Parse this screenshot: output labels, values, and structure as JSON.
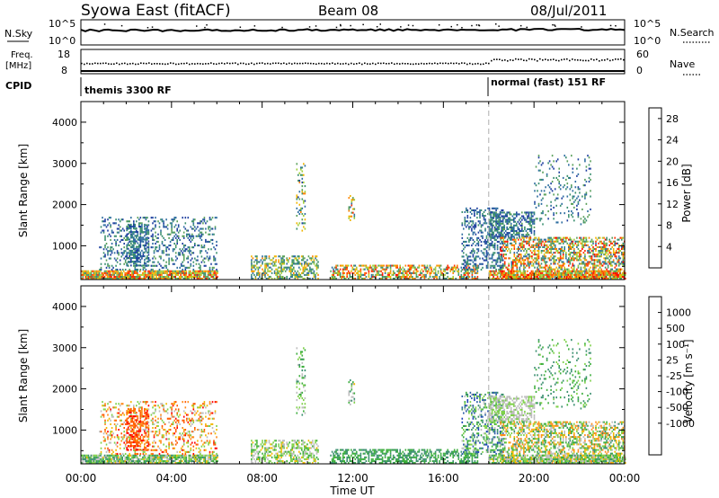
{
  "header": {
    "title": "Syowa East (fitACF)",
    "beam": "Beam 08",
    "date": "08/Jul/2011"
  },
  "top_panels": {
    "nsky_label": "N.Sky",
    "nsky_ticks": [
      "10^5",
      "10^0"
    ],
    "nsearch_label": "N.Search",
    "freq_label_1": "Freq.",
    "freq_label_2": "[MHz]",
    "freq_ticks": [
      "18",
      "8"
    ],
    "nave_label": "Nave",
    "nave_ticks": [
      "60",
      "0"
    ],
    "cpid_label": "CPID",
    "cpid_segments": [
      "themis 3300 RF",
      "normal (fast) 151 RF"
    ]
  },
  "colors": {
    "power": [
      "#0000ff",
      "#1f3f9f",
      "#2e6ea0",
      "#3a8f6f",
      "#5aa05a",
      "#a0cf3a",
      "#f0b400",
      "#ff8000",
      "#ff3000",
      "#ff0000"
    ],
    "velocity": [
      "#ff0000",
      "#ff5a00",
      "#ff8c1a",
      "#f2b800",
      "#bdbdbd",
      "#7fd14a",
      "#3cae3c",
      "#3a8f6f",
      "#2b5fa8",
      "#1a3fb5"
    ]
  },
  "chart_data": [
    {
      "type": "heatmap",
      "name": "power_panel",
      "xlabel": "Time UT",
      "ylabel": "Slant Range [km]",
      "x_ticks": [
        "00:00",
        "04:00",
        "08:00",
        "12:00",
        "16:00",
        "20:00",
        "00:00"
      ],
      "xlim_hours": [
        0,
        24
      ],
      "y_ticks": [
        "1000",
        "2000",
        "3000",
        "4000"
      ],
      "ylim_km": [
        180,
        4500
      ],
      "colorbar_label": "Power [dB]",
      "colorbar_ticks": [
        "4",
        "8",
        "12",
        "16",
        "20",
        "24",
        "28"
      ],
      "colorbar_range": [
        0,
        30
      ],
      "mode_change_hour": 18.0
    },
    {
      "type": "heatmap",
      "name": "velocity_panel",
      "xlabel": "Time UT",
      "ylabel": "Slant Range [km]",
      "x_ticks": [
        "00:00",
        "04:00",
        "08:00",
        "12:00",
        "16:00",
        "20:00",
        "00:00"
      ],
      "xlim_hours": [
        0,
        24
      ],
      "y_ticks": [
        "1000",
        "2000",
        "3000",
        "4000"
      ],
      "ylim_km": [
        180,
        4500
      ],
      "colorbar_label": "Velocity [m s⁻¹]",
      "colorbar_ticks": [
        "1000",
        "500",
        "100",
        "25",
        "-25",
        "-100",
        "-500",
        "-1000"
      ],
      "mode_change_hour": 18.0
    }
  ],
  "echo_regions": [
    {
      "t0": 0.0,
      "t1": 6.0,
      "r0": 180,
      "r1": 400,
      "density": 0.85,
      "pow": [
        10,
        28
      ],
      "vel": [
        -0.3,
        0.6
      ]
    },
    {
      "t0": 0.8,
      "t1": 6.0,
      "r0": 400,
      "r1": 1700,
      "density": 0.25,
      "pow": [
        3,
        14
      ],
      "vel": [
        -0.9,
        0.2
      ]
    },
    {
      "t0": 2.0,
      "t1": 3.0,
      "r0": 500,
      "r1": 1500,
      "density": 0.5,
      "pow": [
        4,
        12
      ],
      "vel": [
        -0.9,
        -0.5
      ]
    },
    {
      "t0": 7.5,
      "t1": 10.5,
      "r0": 180,
      "r1": 750,
      "density": 0.45,
      "pow": [
        6,
        22
      ],
      "vel": [
        -0.3,
        0.4
      ]
    },
    {
      "t0": 9.5,
      "t1": 9.9,
      "r0": 1300,
      "r1": 3000,
      "density": 0.3,
      "pow": [
        4,
        22
      ],
      "vel": [
        -0.2,
        0.5
      ]
    },
    {
      "t0": 11.8,
      "t1": 12.1,
      "r0": 1600,
      "r1": 2200,
      "density": 0.4,
      "pow": [
        8,
        26
      ],
      "vel": [
        -0.3,
        0.6
      ]
    },
    {
      "t0": 11.0,
      "t1": 17.5,
      "r0": 180,
      "r1": 500,
      "density": 0.55,
      "pow": [
        8,
        28
      ],
      "vel": [
        0.2,
        0.6
      ]
    },
    {
      "t0": 16.8,
      "t1": 18.6,
      "r0": 400,
      "r1": 1900,
      "density": 0.35,
      "pow": [
        3,
        12
      ],
      "vel": [
        -0.1,
        0.9
      ]
    },
    {
      "t0": 18.0,
      "t1": 20.0,
      "r0": 1200,
      "r1": 1800,
      "density": 0.55,
      "pow": [
        3,
        14
      ],
      "vel": [
        -0.2,
        0.1
      ]
    },
    {
      "t0": 18.5,
      "t1": 24.0,
      "r0": 180,
      "r1": 1200,
      "density": 0.5,
      "pow": [
        6,
        28
      ],
      "vel": [
        -0.6,
        0.5
      ]
    },
    {
      "t0": 18.0,
      "t1": 24.0,
      "r0": 180,
      "r1": 400,
      "density": 0.8,
      "pow": [
        12,
        30
      ],
      "vel": [
        -0.3,
        0.5
      ]
    },
    {
      "t0": 20.0,
      "t1": 22.5,
      "r0": 1500,
      "r1": 3200,
      "density": 0.12,
      "pow": [
        4,
        14
      ],
      "vel": [
        0.1,
        0.6
      ]
    }
  ]
}
